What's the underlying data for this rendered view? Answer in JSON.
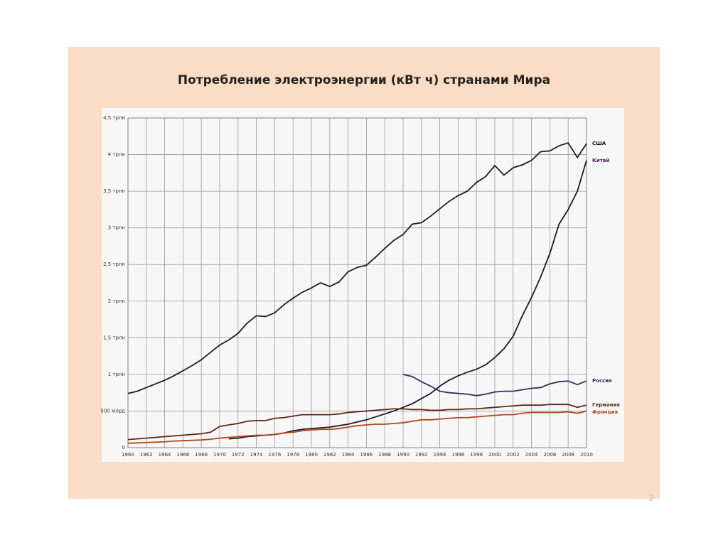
{
  "slide": {
    "page_number": "2"
  },
  "chart_data": {
    "type": "line",
    "title": "Потребление электроэнергии (кВт ч) странами Мира",
    "x": [
      1960,
      1961,
      1962,
      1963,
      1964,
      1965,
      1966,
      1967,
      1968,
      1969,
      1970,
      1971,
      1972,
      1973,
      1974,
      1975,
      1976,
      1977,
      1978,
      1979,
      1980,
      1981,
      1982,
      1983,
      1984,
      1985,
      1986,
      1987,
      1988,
      1989,
      1990,
      1991,
      1992,
      1993,
      1994,
      1995,
      1996,
      1997,
      1998,
      1999,
      2000,
      2001,
      2002,
      2003,
      2004,
      2005,
      2006,
      2007,
      2008,
      2009,
      2010
    ],
    "series": [
      {
        "name": "США",
        "color": "#1e1e1e",
        "label_color": "#111111",
        "values": [
          0.74,
          0.77,
          0.82,
          0.87,
          0.92,
          0.98,
          1.05,
          1.12,
          1.2,
          1.3,
          1.4,
          1.47,
          1.56,
          1.7,
          1.8,
          1.79,
          1.84,
          1.95,
          2.04,
          2.12,
          2.18,
          2.25,
          2.2,
          2.26,
          2.4,
          2.46,
          2.49,
          2.6,
          2.72,
          2.83,
          2.91,
          3.05,
          3.07,
          3.16,
          3.26,
          3.36,
          3.44,
          3.5,
          3.62,
          3.7,
          3.85,
          3.72,
          3.82,
          3.86,
          3.92,
          4.04,
          4.05,
          4.12,
          4.16,
          3.96,
          4.15
        ]
      },
      {
        "name": "Китай",
        "color": "#1c1a2a",
        "label_color": "#4a2060",
        "values": [
          null,
          null,
          null,
          null,
          null,
          null,
          null,
          null,
          null,
          null,
          null,
          0.12,
          0.13,
          0.15,
          0.16,
          0.17,
          0.18,
          0.2,
          0.23,
          0.25,
          0.26,
          0.27,
          0.28,
          0.3,
          0.32,
          0.35,
          0.38,
          0.42,
          0.46,
          0.5,
          0.55,
          0.6,
          0.67,
          0.74,
          0.84,
          0.92,
          0.98,
          1.03,
          1.07,
          1.13,
          1.23,
          1.35,
          1.52,
          1.8,
          2.05,
          2.33,
          2.65,
          3.05,
          3.25,
          3.5,
          3.92
        ]
      },
      {
        "name": "Россия",
        "color": "#27365f",
        "label_color": "#27365f",
        "values": [
          null,
          null,
          null,
          null,
          null,
          null,
          null,
          null,
          null,
          null,
          null,
          null,
          null,
          null,
          null,
          null,
          null,
          null,
          null,
          null,
          null,
          null,
          null,
          null,
          null,
          null,
          null,
          null,
          null,
          null,
          1.0,
          0.97,
          0.9,
          0.84,
          0.77,
          0.75,
          0.74,
          0.73,
          0.71,
          0.73,
          0.76,
          0.77,
          0.77,
          0.79,
          0.81,
          0.82,
          0.87,
          0.9,
          0.91,
          0.86,
          0.91
        ]
      },
      {
        "name": "Германия",
        "color": "#5a2a1a",
        "label_color": "#5a2a1a",
        "values": [
          0.11,
          0.12,
          0.13,
          0.14,
          0.15,
          0.16,
          0.17,
          0.18,
          0.19,
          0.21,
          0.29,
          0.31,
          0.33,
          0.36,
          0.37,
          0.37,
          0.4,
          0.41,
          0.43,
          0.45,
          0.45,
          0.45,
          0.45,
          0.46,
          0.48,
          0.49,
          0.5,
          0.51,
          0.52,
          0.53,
          0.53,
          0.52,
          0.52,
          0.51,
          0.51,
          0.52,
          0.52,
          0.53,
          0.53,
          0.54,
          0.55,
          0.56,
          0.57,
          0.58,
          0.58,
          0.58,
          0.59,
          0.59,
          0.59,
          0.55,
          0.58
        ]
      },
      {
        "name": "Франция",
        "color": "#b0481a",
        "label_color": "#b0481a",
        "values": [
          0.06,
          0.065,
          0.07,
          0.075,
          0.08,
          0.09,
          0.095,
          0.1,
          0.105,
          0.115,
          0.13,
          0.14,
          0.15,
          0.16,
          0.17,
          0.17,
          0.18,
          0.2,
          0.21,
          0.23,
          0.24,
          0.25,
          0.25,
          0.26,
          0.28,
          0.3,
          0.31,
          0.32,
          0.32,
          0.33,
          0.34,
          0.36,
          0.38,
          0.38,
          0.39,
          0.4,
          0.41,
          0.41,
          0.42,
          0.43,
          0.44,
          0.45,
          0.45,
          0.47,
          0.48,
          0.48,
          0.48,
          0.48,
          0.49,
          0.47,
          0.5
        ]
      }
    ],
    "xlim": [
      1960,
      2010
    ],
    "xticks": [
      1960,
      1962,
      1964,
      1966,
      1968,
      1970,
      1972,
      1974,
      1976,
      1978,
      1980,
      1982,
      1984,
      1986,
      1988,
      1990,
      1992,
      1994,
      1996,
      1998,
      2000,
      2002,
      2004,
      2006,
      2008,
      2010
    ],
    "ylim": [
      0,
      4.5
    ],
    "yticks": [
      0,
      {
        "value": 0.5,
        "label": "500 млрд"
      },
      {
        "value": 1,
        "label": "1 трлн"
      },
      {
        "value": 1.5,
        "label": "1,5 трлн"
      },
      {
        "value": 2,
        "label": "2 трлн"
      },
      {
        "value": 2.5,
        "label": "2,5 трлн"
      },
      {
        "value": 3,
        "label": "3 трлн"
      },
      {
        "value": 3.5,
        "label": "3,5 трлн"
      },
      {
        "value": 4,
        "label": "4 трлн"
      },
      {
        "value": 4.5,
        "label": "4,5 трлн"
      }
    ],
    "grid": true
  }
}
